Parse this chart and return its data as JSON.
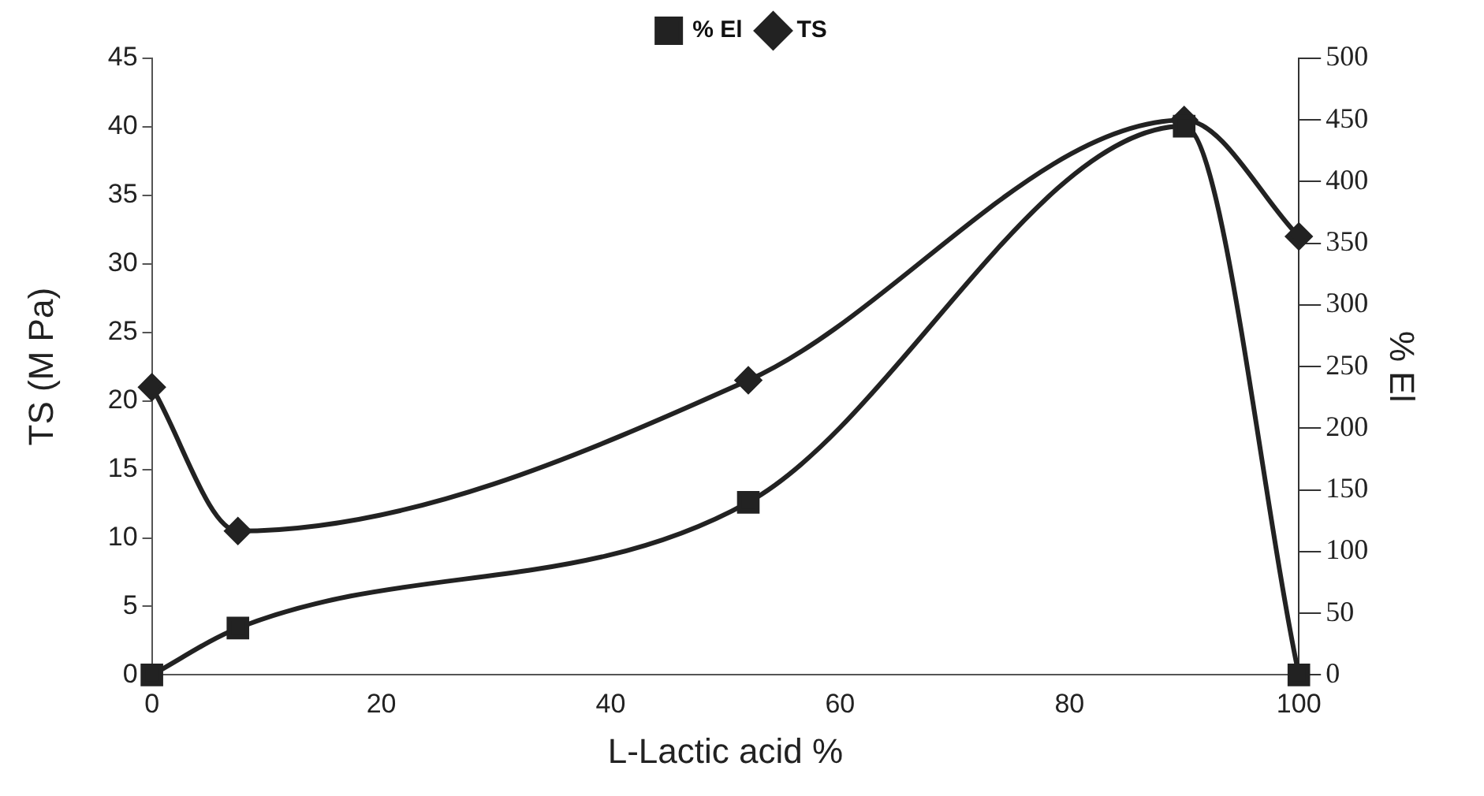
{
  "chart_data": {
    "type": "line",
    "xlabel": "L-Lactic acid %",
    "ylabel": "TS (M Pa)",
    "y2label": "% El",
    "x": [
      0,
      7.5,
      52,
      90,
      100
    ],
    "series": [
      {
        "name": "TS",
        "color": "#222222",
        "marker": "diamond",
        "values": [
          21,
          10.5,
          21.5,
          40.5,
          32
        ]
      },
      {
        "name": "% El",
        "color": "#222222",
        "marker": "square",
        "axis": "y2",
        "values": [
          0,
          38,
          140,
          445,
          0
        ]
      }
    ],
    "xlim": [
      0,
      100
    ],
    "xticks": [
      0,
      20,
      40,
      60,
      80,
      100
    ],
    "ylim": [
      0,
      45
    ],
    "yticks": [
      0,
      5,
      10,
      15,
      20,
      25,
      30,
      35,
      40,
      45
    ],
    "y2lim": [
      0,
      500
    ],
    "y2ticks": [
      0,
      50,
      100,
      150,
      200,
      250,
      300,
      350,
      400,
      450,
      500
    ],
    "legend": "top",
    "grid": false
  }
}
